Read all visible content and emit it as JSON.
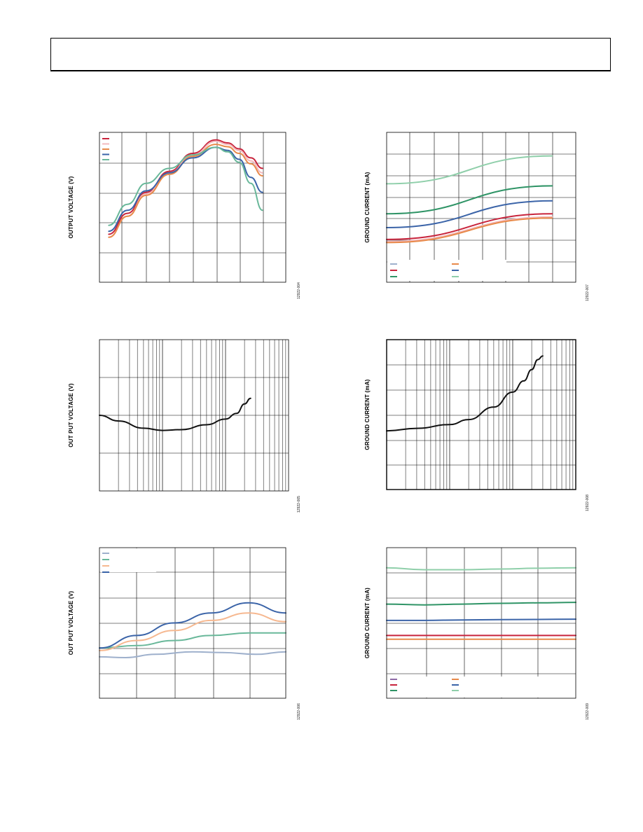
{
  "header": {
    "title": ""
  },
  "colors": {
    "red": "#c8243c",
    "pink": "#f2b9be",
    "orange": "#e88a4a",
    "blue": "#3b64a8",
    "green": "#2f9466",
    "lightgreen": "#8fcfaa",
    "teal": "#69b89a",
    "peach": "#f6b890",
    "grayblue": "#9eb0cc",
    "purple": "#8e6aa6"
  },
  "chart_data": [
    {
      "id": "c1",
      "type": "line",
      "ylabel": "OUTPUT VOLTAGE (V)",
      "code": "12922-004",
      "xlim": [
        0,
        8
      ],
      "ylim": [
        0,
        5
      ],
      "series": [
        {
          "color": "red",
          "x": [
            0.4,
            1.2,
            2,
            3,
            4,
            5,
            5.5,
            6,
            6.5,
            7
          ],
          "y": [
            1.6,
            2.3,
            3.0,
            3.7,
            4.3,
            4.75,
            4.65,
            4.45,
            4.15,
            3.8
          ]
        },
        {
          "color": "pink",
          "x": [
            0.4,
            1.2,
            2,
            3,
            4,
            5,
            5.5,
            6,
            6.5,
            7
          ],
          "y": [
            1.5,
            2.2,
            2.95,
            3.65,
            4.25,
            4.7,
            4.6,
            4.4,
            4.05,
            3.65
          ]
        },
        {
          "color": "orange",
          "x": [
            0.4,
            1.2,
            2,
            3,
            4,
            5,
            5.5,
            6,
            6.5,
            7
          ],
          "y": [
            1.5,
            2.2,
            2.9,
            3.6,
            4.2,
            4.6,
            4.52,
            4.3,
            3.95,
            3.55
          ]
        },
        {
          "color": "blue",
          "x": [
            0.4,
            1.2,
            2,
            3,
            4,
            5,
            5.5,
            6,
            6.5,
            7
          ],
          "y": [
            1.7,
            2.4,
            3.05,
            3.65,
            4.15,
            4.5,
            4.4,
            4.1,
            3.5,
            3.0
          ]
        },
        {
          "color": "teal",
          "x": [
            0.4,
            1.2,
            2,
            3,
            4,
            5,
            5.5,
            6,
            6.5,
            7
          ],
          "y": [
            1.9,
            2.6,
            3.3,
            3.8,
            4.25,
            4.5,
            4.35,
            4.0,
            3.3,
            2.4
          ]
        }
      ],
      "legend": [
        "red",
        "pink",
        "orange",
        "blue",
        "teal"
      ],
      "legend_placement": "top-left"
    },
    {
      "id": "c2",
      "type": "line",
      "ylabel": "GROUND CURRENT (mA)",
      "code": "12922-007",
      "xlim": [
        0,
        8
      ],
      "ylim": [
        0,
        7
      ],
      "series": [
        {
          "color": "lightgreen",
          "x": [
            0,
            7
          ],
          "y": [
            4.6,
            5.9
          ]
        },
        {
          "color": "green",
          "x": [
            0,
            7
          ],
          "y": [
            3.2,
            4.5
          ]
        },
        {
          "color": "blue",
          "x": [
            0,
            7
          ],
          "y": [
            2.55,
            3.8
          ]
        },
        {
          "color": "red",
          "x": [
            0,
            7
          ],
          "y": [
            2.0,
            3.2
          ]
        },
        {
          "color": "pink",
          "x": [
            0,
            7
          ],
          "y": [
            1.9,
            3.05
          ]
        },
        {
          "color": "orange",
          "x": [
            0,
            7
          ],
          "y": [
            1.85,
            3.0
          ]
        }
      ],
      "legend": [
        "grayblue",
        "orange",
        "red",
        "blue",
        "green",
        "lightgreen"
      ],
      "legend_placement": "bottom-left"
    },
    {
      "id": "c3",
      "type": "line",
      "ylabel": "OUT PUT VOLTAGE (V)",
      "code": "12922-005",
      "xscale": "log",
      "xlim": [
        1,
        1000
      ],
      "ylim": [
        0,
        4
      ],
      "series": [
        {
          "color": "black",
          "x": [
            1,
            2,
            5,
            10,
            20,
            50,
            100,
            150,
            200,
            250
          ],
          "y": [
            2.0,
            1.85,
            1.66,
            1.6,
            1.62,
            1.75,
            1.9,
            2.05,
            2.3,
            2.45
          ]
        }
      ]
    },
    {
      "id": "c4",
      "type": "line",
      "ylabel": "GROUND CURRENT (mA)",
      "code": "12922-008",
      "xscale": "log",
      "xlim": [
        1,
        1000
      ],
      "ylim": [
        0,
        6
      ],
      "series": [
        {
          "color": "black",
          "x": [
            1,
            3,
            10,
            20,
            50,
            100,
            150,
            200,
            250,
            300
          ],
          "y": [
            2.35,
            2.45,
            2.6,
            2.8,
            3.3,
            3.9,
            4.35,
            4.8,
            5.2,
            5.35
          ]
        }
      ]
    },
    {
      "id": "c5",
      "type": "line",
      "ylabel": "OUT PUT VOLTAGE (V)",
      "code": "12922-006",
      "xlim": [
        0,
        5
      ],
      "ylim": [
        0,
        6
      ],
      "series": [
        {
          "color": "grayblue",
          "x": [
            0,
            0.7,
            1.5,
            2.5,
            3.3,
            4.2,
            5
          ],
          "y": [
            1.65,
            1.62,
            1.75,
            1.85,
            1.82,
            1.75,
            1.85
          ]
        },
        {
          "color": "teal",
          "x": [
            0,
            1,
            2,
            3,
            4,
            5
          ],
          "y": [
            2.0,
            2.1,
            2.3,
            2.5,
            2.6,
            2.6
          ]
        },
        {
          "color": "peach",
          "x": [
            0,
            1,
            2,
            3,
            4,
            5
          ],
          "y": [
            1.9,
            2.3,
            2.7,
            3.1,
            3.4,
            3.05
          ]
        },
        {
          "color": "blue",
          "x": [
            0,
            1,
            2,
            3,
            4,
            5
          ],
          "y": [
            2.0,
            2.5,
            3.0,
            3.4,
            3.8,
            3.4
          ]
        }
      ],
      "legend": [
        "grayblue",
        "teal",
        "peach",
        "blue"
      ],
      "legend_placement": "top-left"
    },
    {
      "id": "c6",
      "type": "line",
      "ylabel": "GROUND CURRENT (mA)",
      "code": "12922-009",
      "xlim": [
        0,
        5
      ],
      "ylim": [
        0,
        6
      ],
      "series": [
        {
          "color": "lightgreen",
          "x": [
            0,
            1,
            2,
            3,
            4,
            5
          ],
          "y": [
            5.2,
            5.12,
            5.12,
            5.15,
            5.18,
            5.2
          ]
        },
        {
          "color": "green",
          "x": [
            0,
            1,
            2,
            3,
            4,
            5
          ],
          "y": [
            3.75,
            3.72,
            3.75,
            3.78,
            3.8,
            3.82
          ]
        },
        {
          "color": "blue",
          "x": [
            0,
            1,
            2,
            3,
            4,
            5
          ],
          "y": [
            3.1,
            3.1,
            3.12,
            3.13,
            3.14,
            3.15
          ]
        },
        {
          "color": "red",
          "x": [
            0,
            5
          ],
          "y": [
            2.5,
            2.5
          ]
        },
        {
          "color": "orange",
          "x": [
            0,
            5
          ],
          "y": [
            2.35,
            2.35
          ]
        }
      ],
      "legend": [
        "purple",
        "orange",
        "red",
        "blue",
        "green",
        "lightgreen"
      ],
      "legend_placement": "bottom-left"
    }
  ]
}
